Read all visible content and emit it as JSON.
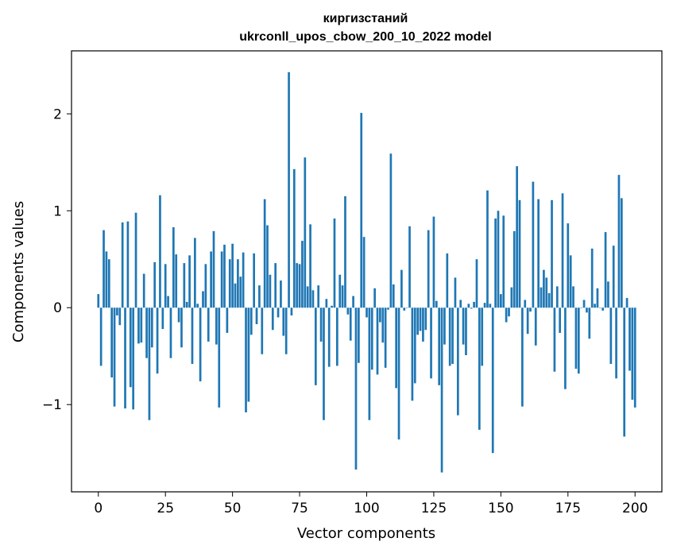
{
  "chart_data": {
    "type": "bar",
    "title_line1": "киргизстаний",
    "title_line2": "ukrconll_upos_cbow_200_10_2022 model",
    "xlabel": "Vector components",
    "ylabel": "Components values",
    "xlim": [
      -10,
      210
    ],
    "ylim": [
      -1.9,
      2.65
    ],
    "xticks": [
      0,
      25,
      50,
      75,
      100,
      125,
      150,
      175,
      200
    ],
    "yticks": [
      -1,
      0,
      1,
      2
    ],
    "ytick_labels": [
      "−1",
      "0",
      "1",
      "2"
    ],
    "bar_color": "#1f77b4",
    "grid": false,
    "values": [
      0.14,
      -0.6,
      0.8,
      0.58,
      0.5,
      -0.72,
      -1.02,
      -0.08,
      -0.18,
      0.88,
      -1.04,
      0.89,
      -0.82,
      -1.05,
      0.98,
      -0.37,
      -0.36,
      0.35,
      -0.52,
      -1.16,
      -0.41,
      0.47,
      -0.68,
      1.16,
      -0.22,
      0.45,
      0.12,
      -0.52,
      0.83,
      0.55,
      -0.15,
      -0.41,
      0.46,
      0.06,
      0.54,
      -0.58,
      0.72,
      0.04,
      -0.76,
      0.17,
      0.45,
      -0.35,
      0.58,
      0.79,
      -0.38,
      -1.03,
      0.58,
      0.65,
      -0.26,
      0.5,
      0.66,
      0.25,
      0.5,
      0.32,
      0.57,
      -1.08,
      -0.97,
      -0.28,
      0.56,
      -0.17,
      0.23,
      -0.48,
      1.12,
      0.85,
      0.34,
      -0.23,
      0.46,
      -0.1,
      0.28,
      -0.29,
      -0.48,
      2.43,
      -0.08,
      1.43,
      0.46,
      0.45,
      0.69,
      1.55,
      0.22,
      0.86,
      0.18,
      -0.8,
      0.23,
      -0.35,
      -1.16,
      0.09,
      -0.61,
      0.02,
      0.92,
      -0.6,
      0.34,
      0.23,
      1.15,
      -0.07,
      -0.34,
      0.12,
      -1.67,
      -0.57,
      2.01,
      0.73,
      -0.1,
      -1.16,
      -0.64,
      0.2,
      -0.69,
      -0.15,
      -0.36,
      -0.62,
      -0.02,
      1.59,
      0.24,
      -0.83,
      -1.36,
      0.39,
      -0.03,
      0.0,
      0.84,
      -0.96,
      -0.78,
      -0.28,
      -0.24,
      -0.35,
      -0.23,
      0.8,
      -0.73,
      0.94,
      0.07,
      -0.8,
      -1.7,
      -0.38,
      0.56,
      -0.6,
      -0.58,
      0.31,
      -1.11,
      0.08,
      -0.38,
      -0.49,
      0.04,
      -0.01,
      0.06,
      0.5,
      -1.26,
      -0.6,
      0.05,
      1.21,
      0.04,
      -1.5,
      0.92,
      1.0,
      0.14,
      0.95,
      -0.15,
      -0.09,
      0.21,
      0.79,
      1.46,
      1.11,
      -1.02,
      0.08,
      -0.27,
      -0.04,
      1.3,
      -0.39,
      1.12,
      0.21,
      0.39,
      0.31,
      0.15,
      1.11,
      -0.66,
      0.22,
      -0.26,
      1.18,
      -0.84,
      0.87,
      0.54,
      0.22,
      -0.63,
      -0.68,
      0.0,
      0.08,
      -0.05,
      -0.32,
      0.61,
      0.04,
      0.2,
      0.0,
      -0.03,
      0.78,
      0.27,
      -0.58,
      0.64,
      -0.73,
      1.37,
      1.13,
      -1.33,
      0.1,
      -0.65,
      -0.95,
      -1.03
    ]
  }
}
